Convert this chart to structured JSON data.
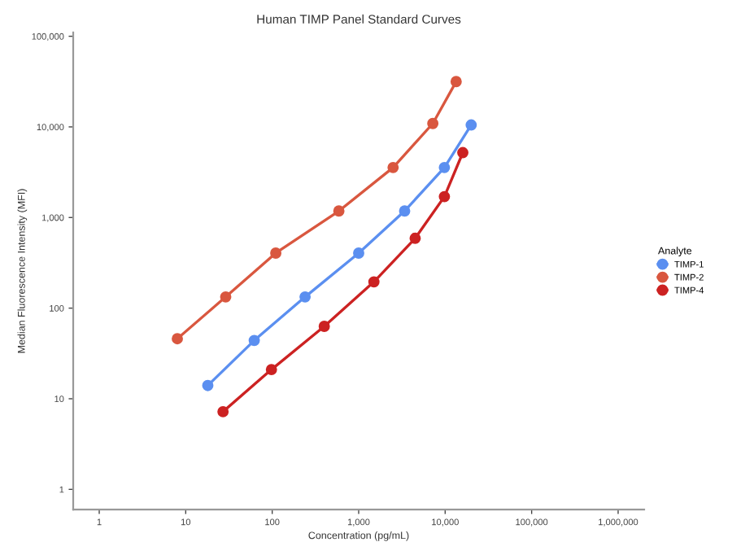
{
  "chart_data": {
    "type": "line",
    "title": "Human TIMP Panel Standard Curves",
    "xlabel": "Concentration (pg/mL)",
    "ylabel": "Median Fluorescence Intensity (MFI)",
    "legend_title": "Analyte",
    "legend": "right",
    "log": "xy",
    "grid": false,
    "marker": "circle",
    "line_style": "solid",
    "xlim": [
      0.5,
      2000000
    ],
    "ylim": [
      0.6,
      110000
    ],
    "xticks": [
      1,
      10,
      100,
      {
        "value": 1000,
        "label": "1,000"
      },
      {
        "value": 10000,
        "label": "10,000"
      },
      {
        "value": 100000,
        "label": "100,000"
      },
      {
        "value": 1000000,
        "label": "1,000,000"
      }
    ],
    "yticks": [
      1,
      10,
      100,
      {
        "value": 1000,
        "label": "1,000"
      },
      {
        "value": 10000,
        "label": "10,000"
      },
      {
        "value": 100000,
        "label": "100,000"
      }
    ],
    "series": [
      {
        "name": "TIMP-1",
        "color": "#5b8ff0",
        "x": [
          18,
          62,
          240,
          1000,
          3400,
          9800,
          20000
        ],
        "values": [
          14,
          44,
          133,
          405,
          1180,
          3560,
          10500
        ]
      },
      {
        "name": "TIMP-2",
        "color": "#d9573f",
        "x": [
          8,
          29,
          110,
          590,
          2500,
          7200,
          13400
        ],
        "values": [
          46,
          133,
          405,
          1180,
          3560,
          10900,
          31600
        ]
      },
      {
        "name": "TIMP-4",
        "color": "#cc2222",
        "x": [
          27,
          98,
          400,
          1500,
          4500,
          9800,
          16000
        ],
        "values": [
          7.2,
          21,
          63,
          195,
          590,
          1700,
          5200
        ]
      }
    ]
  }
}
